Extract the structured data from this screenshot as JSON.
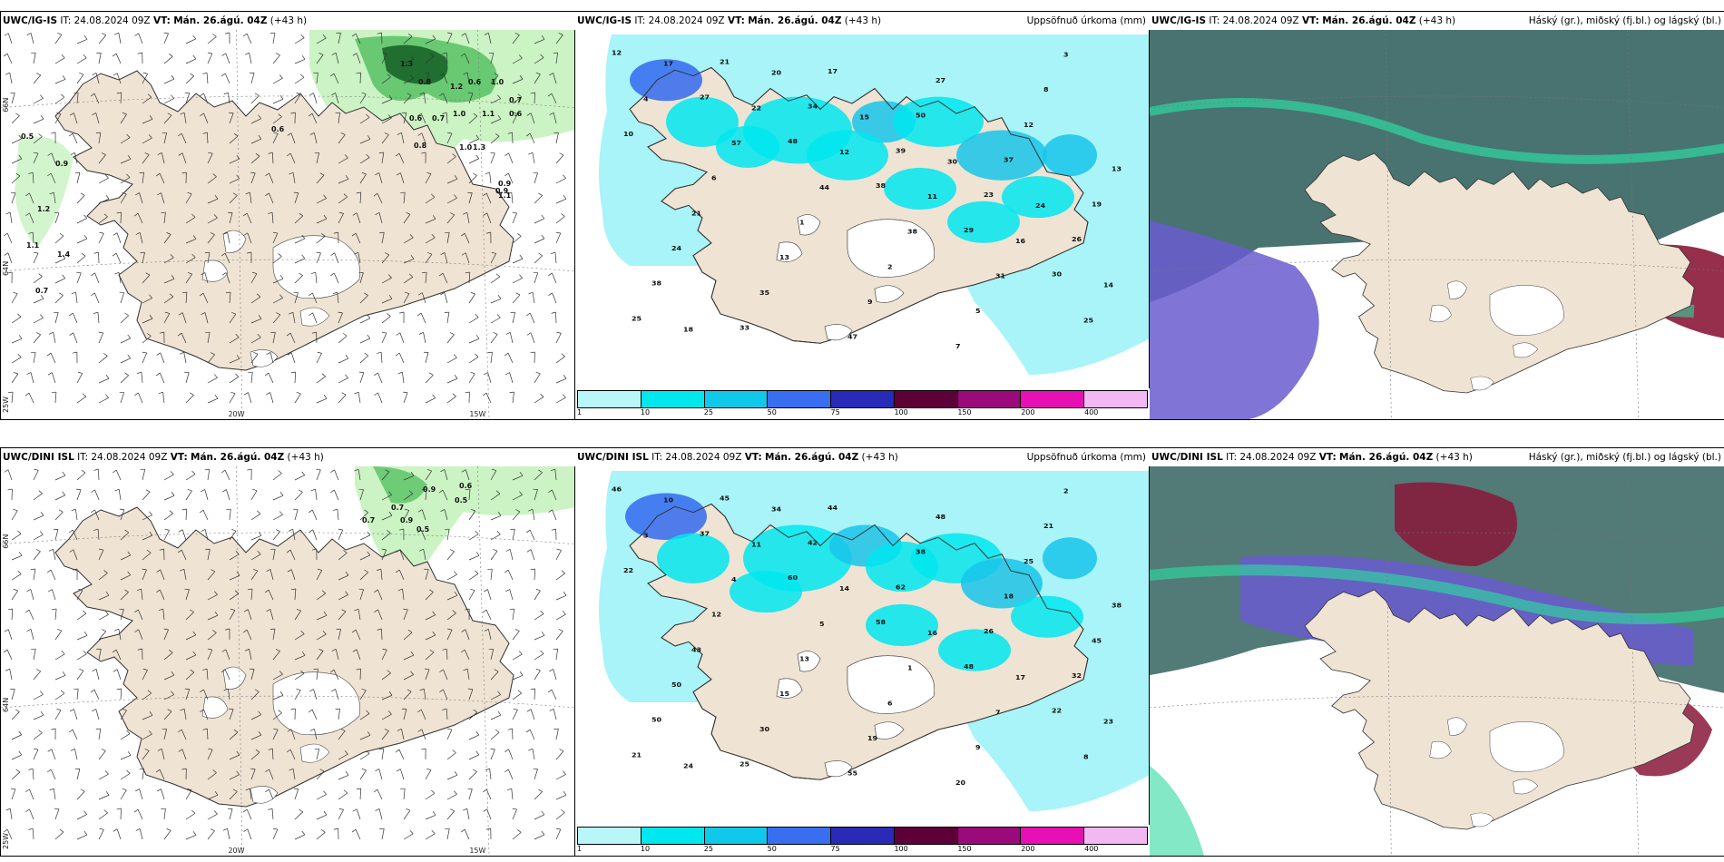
{
  "rows": [
    {
      "model": "UWC/IG-IS",
      "it_label": "IT:",
      "it_value": "24.08.2024 09Z",
      "vt_label": "VT:",
      "vt_value": "Mán. 26.ágú. 04Z",
      "lead": "(+43 h)"
    },
    {
      "model": "UWC/DINI ISL",
      "it_label": "IT:",
      "it_value": "24.08.2024 09Z",
      "vt_label": "VT:",
      "vt_value": "Mán. 26.ágú. 04Z",
      "lead": "(+43 h)"
    }
  ],
  "panel_titles": {
    "precip": "Uppsöfnuð úrkoma (mm)",
    "cloud": "Háský (gr.), miðský (fj.bl.) og lágský (bl.)"
  },
  "geo_labels": {
    "lat_66": "66N",
    "lat_64": "64N",
    "lon_25": "25W",
    "lon_20": "20W",
    "lon_15": "15W"
  },
  "legend": {
    "ticks": [
      "1",
      "10",
      "25",
      "50",
      "75",
      "100",
      "150",
      "200",
      "400"
    ],
    "colors": [
      "#b8f6f8",
      "#00e8ee",
      "#10c8ea",
      "#3a6ef0",
      "#2a2ab8",
      "#5e0038",
      "#9a0a7a",
      "#e610b4",
      "#f2b8f2"
    ]
  },
  "colors": {
    "land": "#efe3d4",
    "sea_precip": "#a8f4f8",
    "precip_light": "#00e6ee",
    "precip_mid": "#18c4ea",
    "precip_heavy": "#3468ee",
    "wind_green_light": "#c8f2c0",
    "wind_green": "#5ec46a",
    "wind_green_dark": "#1e6a2c",
    "cloud_high": "#3f6b68",
    "cloud_mid": "#6a5cd0",
    "cloud_low": "#8a1838",
    "cloud_green": "#2ed8a0"
  },
  "map1_top_labels": [
    "0.5",
    "0.9",
    "1.2",
    "1.1",
    "1.4",
    "0.7",
    "0.6",
    "1.3",
    "0.8",
    "1.2",
    "0.6",
    "1.0",
    "1.0",
    "0.7",
    "0.6",
    "1.1",
    "0.6",
    "0.7",
    "0.8",
    "1.0",
    "1.3",
    "0.9",
    "1.1",
    "0.9"
  ],
  "map1_bottom_labels": [
    "0.9",
    "0.6",
    "0.7",
    "0.5",
    "0.7",
    "0.9",
    "0.5"
  ],
  "map2_top_labels": [
    "12",
    "27",
    "48",
    "38",
    "29",
    "30",
    "25",
    "21",
    "34",
    "39",
    "23",
    "26",
    "38",
    "33",
    "17",
    "50",
    "37",
    "19",
    "24",
    "35",
    "47",
    "27",
    "12",
    "13",
    "21",
    "13",
    "9",
    "7",
    "8",
    "10",
    "6",
    "1",
    "2",
    "5",
    "3",
    "4",
    "57",
    "44",
    "38",
    "31",
    "25",
    "17",
    "22",
    "12",
    "11",
    "16",
    "14",
    "18",
    "20",
    "15",
    "30",
    "24"
  ],
  "map2_bottom_labels": [
    "46",
    "37",
    "60",
    "58",
    "48",
    "22",
    "21",
    "45",
    "42",
    "62",
    "26",
    "32",
    "50",
    "25",
    "44",
    "38",
    "18",
    "45",
    "50",
    "30",
    "55",
    "48",
    "25",
    "38",
    "43",
    "15",
    "19",
    "20",
    "21",
    "22",
    "12",
    "13",
    "6",
    "9",
    "2",
    "3",
    "4",
    "5",
    "1",
    "7",
    "8",
    "10",
    "11",
    "14",
    "16",
    "17",
    "23",
    "24",
    "34"
  ]
}
